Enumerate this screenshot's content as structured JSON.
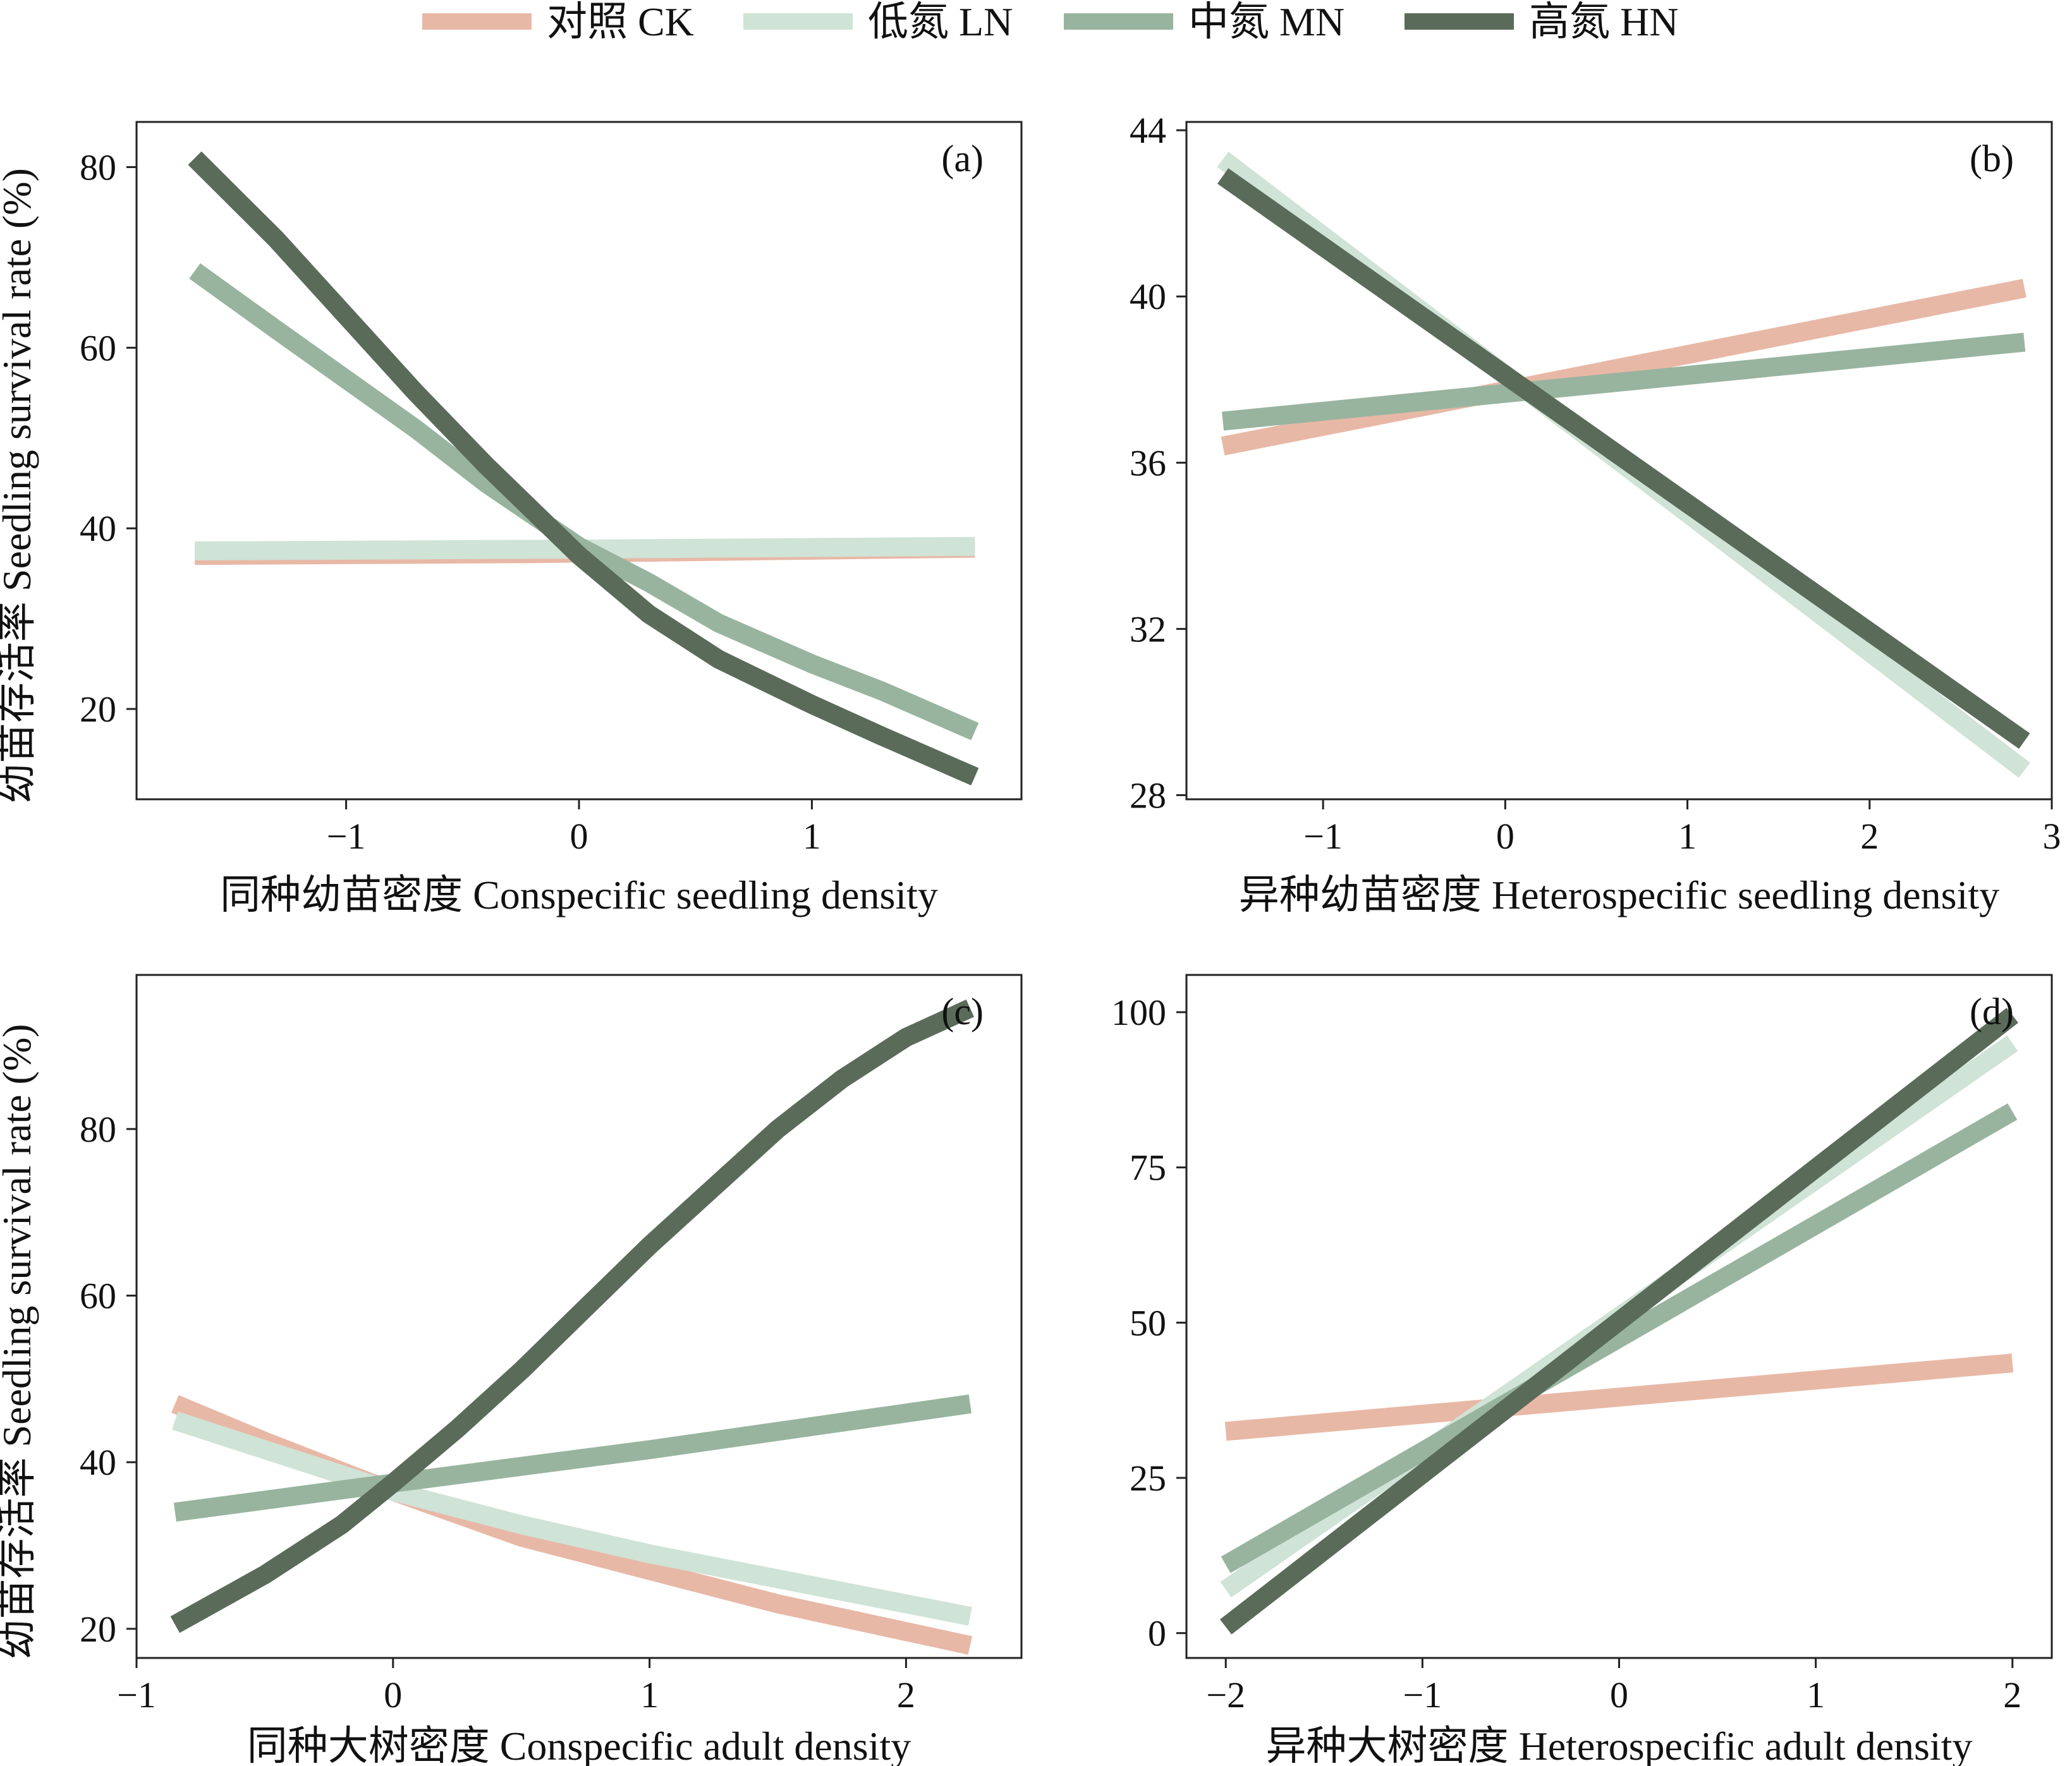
{
  "legend": {
    "items": [
      {
        "label": "对照 CK",
        "color": "#E8B8A6"
      },
      {
        "label": "低氮 LN",
        "color": "#CFE3D6"
      },
      {
        "label": "中氮 MN",
        "color": "#98B49F"
      },
      {
        "label": "高氮 HN",
        "color": "#5A6B5A"
      }
    ]
  },
  "chart_data": [
    {
      "type": "line",
      "tag": "(a)",
      "xlabel": "同种幼苗密度 Conspecific seedling density",
      "ylabel": "幼苗存活率 Seedling survival rate (%)",
      "xlim": [
        -1.9,
        1.9
      ],
      "ylim": [
        10,
        85
      ],
      "xticks": [
        -1,
        0,
        1
      ],
      "xtick_labels": [
        "−1",
        "0",
        "1"
      ],
      "yticks": [
        20,
        40,
        60,
        80
      ],
      "ytick_labels": [
        "20",
        "40",
        "60",
        "80"
      ],
      "series": [
        {
          "name": "对照 CK",
          "x": [
            -1.65,
            -0.2,
            1.7
          ],
          "y": [
            37.0,
            37.2,
            37.8
          ]
        },
        {
          "name": "低氮 LN",
          "x": [
            -1.65,
            0,
            1.7
          ],
          "y": [
            37.5,
            37.7,
            38.0
          ]
        },
        {
          "name": "中氮 MN",
          "x": [
            -1.65,
            -1.3,
            -1,
            -0.7,
            -0.4,
            -0.2,
            0,
            0.3,
            0.6,
            1.0,
            1.3,
            1.7
          ],
          "y": [
            68.5,
            62.0,
            56.5,
            51.0,
            45.0,
            41.5,
            38.0,
            34.0,
            29.5,
            25.0,
            22.0,
            17.5
          ]
        },
        {
          "name": "高氮 HN",
          "x": [
            -1.65,
            -1.3,
            -1,
            -0.7,
            -0.4,
            -0.2,
            0,
            0.3,
            0.6,
            0.8,
            1.0,
            1.3,
            1.7
          ],
          "y": [
            81.0,
            72.0,
            63.5,
            55.0,
            47.0,
            42.0,
            37.0,
            30.5,
            25.5,
            23.0,
            20.5,
            17.0,
            12.5
          ]
        }
      ]
    },
    {
      "type": "line",
      "tag": "(b)",
      "xlabel": "异种幼苗密度 Heterospecific seedling density",
      "ylabel": "",
      "xlim": [
        -1.75,
        3.0
      ],
      "ylim": [
        27.9,
        44.2
      ],
      "xticks": [
        -1,
        0,
        1,
        2,
        3
      ],
      "xtick_labels": [
        "−1",
        "0",
        "1",
        "2",
        "3"
      ],
      "yticks": [
        28,
        32,
        36,
        40,
        44
      ],
      "ytick_labels": [
        "28",
        "32",
        "36",
        "40",
        "44"
      ],
      "series": [
        {
          "name": "对照 CK",
          "x": [
            -1.55,
            2.85
          ],
          "y": [
            36.4,
            40.2
          ]
        },
        {
          "name": "低氮 LN",
          "x": [
            -1.55,
            2.85
          ],
          "y": [
            43.3,
            28.6
          ]
        },
        {
          "name": "中氮 MN",
          "x": [
            -1.55,
            2.85
          ],
          "y": [
            37.0,
            38.9
          ]
        },
        {
          "name": "高氮 HN",
          "x": [
            -1.55,
            2.85
          ],
          "y": [
            42.9,
            29.3
          ]
        }
      ]
    },
    {
      "type": "line",
      "tag": "(c)",
      "xlabel": "同种大树密度 Conspecific adult density",
      "ylabel": "幼苗存活率 Seedling survival rate (%)",
      "xlim": [
        -1.0,
        2.45
      ],
      "ylim": [
        16.5,
        98.5
      ],
      "xticks": [
        -1,
        0,
        1,
        2
      ],
      "xtick_labels": [
        "−1",
        "0",
        "1",
        "2"
      ],
      "yticks": [
        20,
        40,
        60,
        80
      ],
      "ytick_labels": [
        "20",
        "40",
        "60",
        "80"
      ],
      "series": [
        {
          "name": "对照 CK",
          "x": [
            -0.85,
            -0.5,
            0,
            0.5,
            1.0,
            1.5,
            2.25
          ],
          "y": [
            47.0,
            42.5,
            36.5,
            31.0,
            27.0,
            23.0,
            18.0
          ]
        },
        {
          "name": "低氮 LN",
          "x": [
            -0.85,
            -0.5,
            0,
            0.5,
            1.0,
            1.5,
            2.25
          ],
          "y": [
            45.0,
            41.5,
            36.5,
            32.5,
            29.0,
            26.0,
            21.5
          ]
        },
        {
          "name": "中氮 MN",
          "x": [
            -0.85,
            0,
            1.0,
            2.25
          ],
          "y": [
            34.0,
            37.5,
            41.5,
            47.0
          ]
        },
        {
          "name": "高氮 HN",
          "x": [
            -0.85,
            -0.5,
            -0.2,
            0,
            0.25,
            0.5,
            0.75,
            1.0,
            1.25,
            1.5,
            1.75,
            2.0,
            2.25
          ],
          "y": [
            20.5,
            26.5,
            32.5,
            37.5,
            44.0,
            51.0,
            58.5,
            66.0,
            73.0,
            80.0,
            86.0,
            91.0,
            94.5
          ]
        }
      ]
    },
    {
      "type": "line",
      "tag": "(d)",
      "xlabel": "异种大树密度 Heterospecific adult density",
      "ylabel": "",
      "xlim": [
        -2.2,
        2.2
      ],
      "ylim": [
        -4,
        106
      ],
      "xticks": [
        -2,
        -1,
        0,
        1,
        2
      ],
      "xtick_labels": [
        "−2",
        "−1",
        "0",
        "1",
        "2"
      ],
      "yticks": [
        0,
        25,
        50,
        75,
        100
      ],
      "ytick_labels": [
        "0",
        "25",
        "50",
        "75",
        "100"
      ],
      "series": [
        {
          "name": "对照 CK",
          "x": [
            -2,
            2
          ],
          "y": [
            32.5,
            43.5
          ]
        },
        {
          "name": "低氮 LN",
          "x": [
            -2,
            2
          ],
          "y": [
            7.0,
            95.0
          ]
        },
        {
          "name": "中氮 MN",
          "x": [
            -2,
            2
          ],
          "y": [
            11.0,
            84.0
          ]
        },
        {
          "name": "高氮 HN",
          "x": [
            -2,
            2
          ],
          "y": [
            1.0,
            99.5
          ]
        }
      ]
    }
  ]
}
